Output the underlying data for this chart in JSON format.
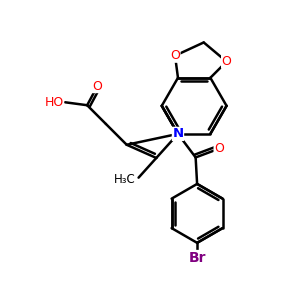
{
  "background_color": "#ffffff",
  "atom_colors": {
    "O": "#ff0000",
    "N": "#0000ff",
    "Br": "#800080",
    "C": "#000000",
    "H": "#000000"
  },
  "bond_color": "#000000",
  "bond_width": 1.8,
  "figsize": [
    3.0,
    3.0
  ],
  "dpi": 100,
  "xlim": [
    0,
    10
  ],
  "ylim": [
    0,
    10
  ]
}
